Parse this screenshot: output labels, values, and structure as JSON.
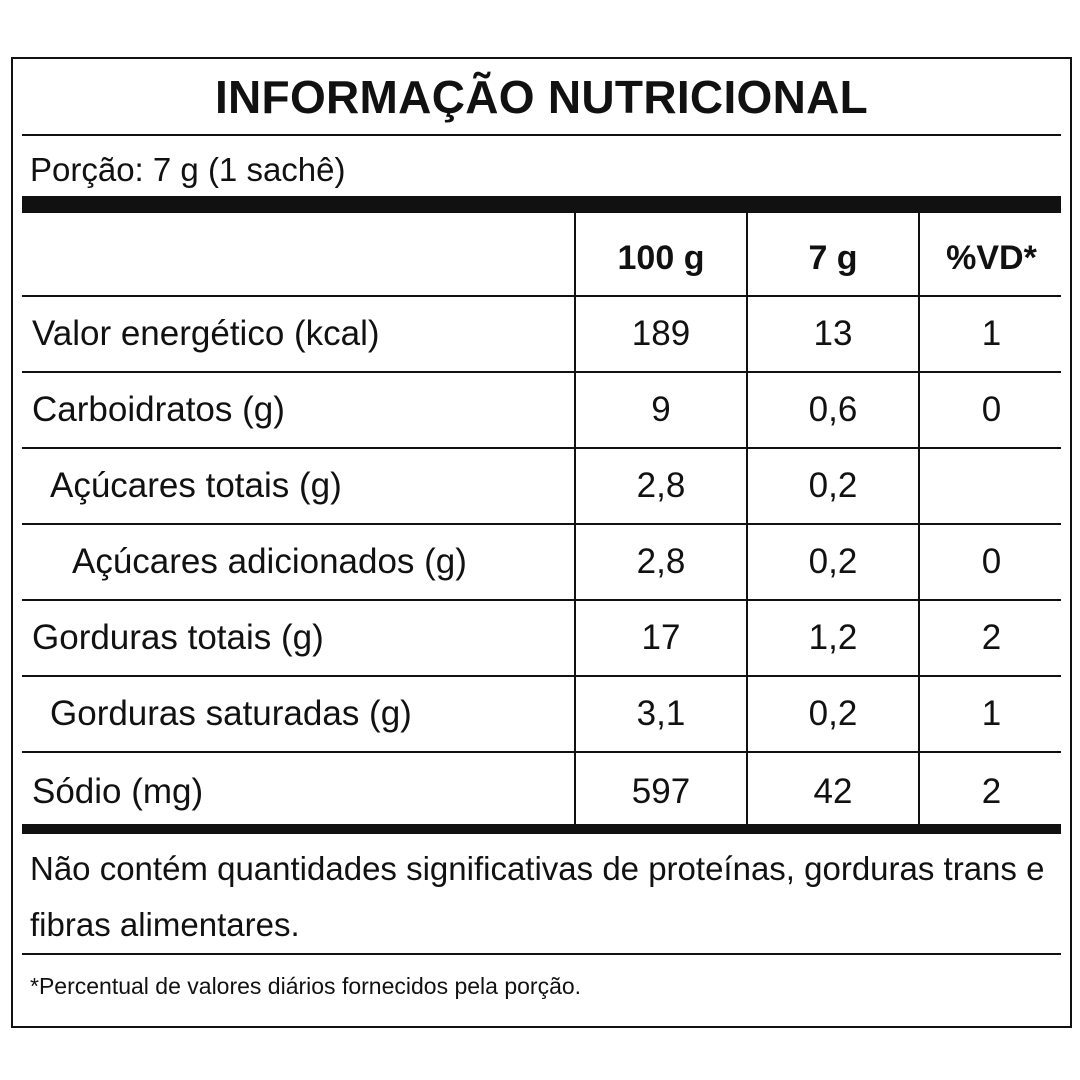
{
  "title": "INFORMAÇÃO NUTRICIONAL",
  "portion": "Porção: 7 g (1 sachê)",
  "columns": [
    "100 g",
    "7 g",
    "%VD*"
  ],
  "rows": [
    {
      "label": "Valor energético (kcal)",
      "per100": "189",
      "perPortion": "13",
      "vd": "1"
    },
    {
      "label": "Carboidratos (g)",
      "per100": "9",
      "perPortion": "0,6",
      "vd": "0"
    },
    {
      "label": "Açúcares totais (g)",
      "per100": "2,8",
      "perPortion": "0,2",
      "vd": ""
    },
    {
      "label": "Açúcares adicionados (g)",
      "per100": "2,8",
      "perPortion": "0,2",
      "vd": "0"
    },
    {
      "label": "Gorduras totais (g)",
      "per100": "17",
      "perPortion": "1,2",
      "vd": "2"
    },
    {
      "label": "Gorduras saturadas (g)",
      "per100": "3,1",
      "perPortion": "0,2",
      "vd": "1"
    },
    {
      "label": "Sódio (mg)",
      "per100": "597",
      "perPortion": "42",
      "vd": "2"
    }
  ],
  "note": "Não contém quantidades significativas de proteínas, gorduras trans e fibras alimentares.",
  "footnote": "*Percentual de valores diários fornecidos pela porção."
}
